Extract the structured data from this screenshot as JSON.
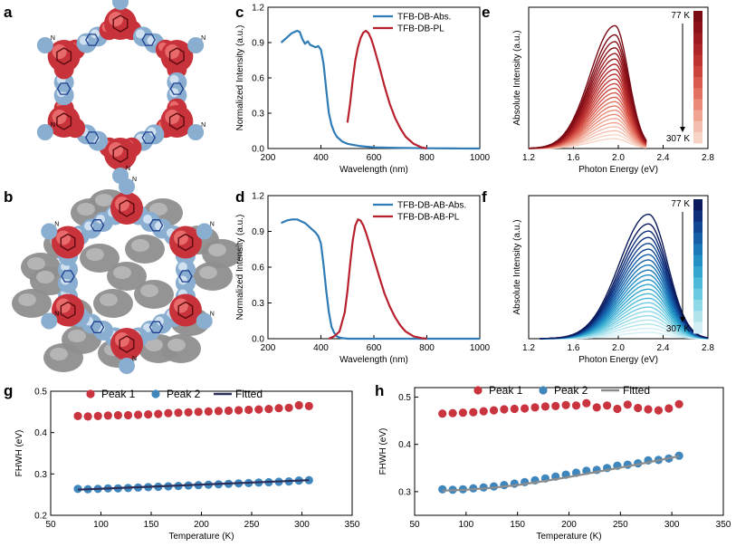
{
  "figure": {
    "panel_labels": [
      "a",
      "b",
      "c",
      "d",
      "e",
      "f",
      "g",
      "h"
    ],
    "colors": {
      "abs_blue": "#2f7bb6",
      "pl_red": "#b8202e",
      "peak1": "#c9343f",
      "peak2": "#3f86bd",
      "fit_dark": "#2b2f5a",
      "fit_gray": "#8c8c8c"
    },
    "structure_a": {
      "description_icon": "cof-hexagonal-pore-red-blue",
      "atom_label": "N"
    },
    "structure_b": {
      "description_icon": "cof-hexagonal-pore-with-gray-guest",
      "atom_label": "N"
    }
  },
  "chart_data": [
    {
      "id": "c",
      "type": "line",
      "xlabel": "Wavelength (nm)",
      "ylabel": "Normalized Intensity (a.u.)",
      "xlim": [
        200,
        1000
      ],
      "ylim": [
        0,
        1.2
      ],
      "xticks": [
        "200",
        "400",
        "600",
        "800",
        "1000"
      ],
      "yticks": [
        "0.0",
        "0.3",
        "0.6",
        "0.9",
        "1.2"
      ],
      "legend": [
        "TFB-DB-Abs.",
        "TFB-DB-PL"
      ],
      "series": [
        {
          "name": "TFB-DB-Abs.",
          "color": "#2f7bb6",
          "x": [
            250,
            270,
            290,
            310,
            320,
            330,
            340,
            350,
            360,
            370,
            380,
            390,
            400,
            410,
            420,
            425,
            430,
            440,
            450,
            460,
            480,
            500,
            550,
            600,
            700,
            800,
            900,
            1000
          ],
          "y": [
            0.9,
            0.94,
            0.98,
            1.0,
            0.99,
            0.93,
            0.89,
            0.91,
            0.88,
            0.87,
            0.86,
            0.87,
            0.84,
            0.72,
            0.5,
            0.4,
            0.3,
            0.2,
            0.14,
            0.1,
            0.06,
            0.04,
            0.02,
            0.01,
            0.005,
            0.002,
            0.001,
            0.0
          ]
        },
        {
          "name": "TFB-DB-PL",
          "color": "#b8202e",
          "x": [
            500,
            510,
            520,
            530,
            540,
            550,
            560,
            570,
            580,
            590,
            600,
            620,
            640,
            660,
            680,
            700,
            720,
            750,
            780,
            800
          ],
          "y": [
            0.22,
            0.38,
            0.58,
            0.75,
            0.86,
            0.94,
            0.985,
            1.0,
            0.98,
            0.93,
            0.86,
            0.7,
            0.53,
            0.38,
            0.26,
            0.17,
            0.1,
            0.04,
            0.01,
            0.0
          ]
        }
      ]
    },
    {
      "id": "d",
      "type": "line",
      "xlabel": "Wavelength (nm)",
      "ylabel": "Normalized Intensity (a.u.)",
      "xlim": [
        200,
        1000
      ],
      "ylim": [
        0,
        1.2
      ],
      "xticks": [
        "200",
        "400",
        "600",
        "800",
        "1000"
      ],
      "yticks": [
        "0.0",
        "0.3",
        "0.6",
        "0.9",
        "1.2"
      ],
      "legend": [
        "TFB-DB-AB-Abs.",
        "TFB-DB-AB-PL"
      ],
      "series": [
        {
          "name": "TFB-DB-AB-Abs.",
          "color": "#2f7bb6",
          "x": [
            250,
            270,
            290,
            310,
            320,
            330,
            340,
            350,
            360,
            370,
            380,
            390,
            400,
            410,
            420,
            430,
            440,
            450,
            460,
            470,
            480,
            500,
            550,
            600,
            800,
            1000
          ],
          "y": [
            0.97,
            0.99,
            1.0,
            1.0,
            0.99,
            0.98,
            0.97,
            0.95,
            0.93,
            0.91,
            0.89,
            0.86,
            0.8,
            0.62,
            0.4,
            0.22,
            0.1,
            0.05,
            0.02,
            0.01,
            0.005,
            0.0,
            0.0,
            0.0,
            0.0,
            0.0
          ]
        },
        {
          "name": "TFB-DB-AB-PL",
          "color": "#b8202e",
          "x": [
            430,
            450,
            470,
            490,
            500,
            510,
            520,
            530,
            540,
            550,
            560,
            570,
            580,
            600,
            620,
            640,
            660,
            680,
            700,
            720,
            750,
            780,
            800
          ],
          "y": [
            0.0,
            0.02,
            0.06,
            0.22,
            0.4,
            0.62,
            0.82,
            0.95,
            1.0,
            0.99,
            0.95,
            0.89,
            0.82,
            0.67,
            0.52,
            0.38,
            0.27,
            0.18,
            0.11,
            0.06,
            0.02,
            0.005,
            0.0
          ]
        }
      ]
    },
    {
      "id": "e",
      "type": "line",
      "xlabel": "Photon Energy (eV)",
      "ylabel": "Absolute Intensity (a.u.)",
      "xlim": [
        1.2,
        2.8
      ],
      "ylim": [
        0,
        1.15
      ],
      "xticks": [
        "1.2",
        "1.6",
        "2.0",
        "2.4",
        "2.8"
      ],
      "colorbar": {
        "top_label": "77 K",
        "bottom_label": "307 K",
        "colors": [
          "#7a0a14",
          "#8b1119",
          "#9c1a20",
          "#ad2528",
          "#bd3330",
          "#cc453d",
          "#d8594e",
          "#e27161",
          "#ea8a78",
          "#f0a593",
          "#f4beae",
          "#f7d4c6"
        ]
      },
      "peak_center_eV": 1.97,
      "energy_range_eV": [
        1.2,
        2.25
      ],
      "curve_count": 24,
      "max_amplitude": 1.0,
      "min_amplitude": 0.08
    },
    {
      "id": "f",
      "type": "line",
      "xlabel": "Photon Energy (eV)",
      "ylabel": "Absolute Intensity (a.u.)",
      "xlim": [
        1.2,
        2.8
      ],
      "ylim": [
        0,
        1.15
      ],
      "xticks": [
        "1.2",
        "1.6",
        "2.0",
        "2.4",
        "2.8"
      ],
      "colorbar": {
        "top_label": "77 K",
        "bottom_label": "307 K",
        "colors": [
          "#0a1a5c",
          "#0e2f7a",
          "#124794",
          "#155fa8",
          "#1a78b8",
          "#2290c4",
          "#33a6cf",
          "#4db9d8",
          "#6ccae0",
          "#8fd8e7",
          "#b3e4ee",
          "#d3eff5"
        ]
      },
      "peak_center_eV": 2.27,
      "energy_range_eV": [
        1.3,
        2.8
      ],
      "curve_count": 24,
      "max_amplitude": 1.0,
      "min_amplitude": 0.05
    },
    {
      "id": "g",
      "type": "scatter",
      "xlabel": "Temperature (K)",
      "ylabel": "FHWH (eV)",
      "xlim": [
        50,
        350
      ],
      "ylim": [
        0.2,
        0.5
      ],
      "xticks": [
        "50",
        "100",
        "150",
        "200",
        "250",
        "300",
        "350"
      ],
      "yticks": [
        "0.2",
        "0.3",
        "0.4",
        "0.5"
      ],
      "legend": [
        "Peak 1",
        "Peak 2",
        "Fitted"
      ],
      "x": [
        77,
        87,
        97,
        107,
        117,
        127,
        137,
        147,
        157,
        167,
        177,
        187,
        197,
        207,
        217,
        227,
        237,
        247,
        257,
        267,
        277,
        287,
        297,
        307
      ],
      "series": [
        {
          "name": "Peak 1",
          "color": "#c9343f",
          "values": [
            0.44,
            0.439,
            0.44,
            0.441,
            0.442,
            0.442,
            0.443,
            0.444,
            0.445,
            0.447,
            0.448,
            0.449,
            0.45,
            0.451,
            0.452,
            0.453,
            0.454,
            0.455,
            0.456,
            0.457,
            0.459,
            0.46,
            0.466,
            0.464
          ]
        },
        {
          "name": "Peak 2",
          "color": "#3f86bd",
          "values": [
            0.264,
            0.263,
            0.264,
            0.265,
            0.265,
            0.266,
            0.267,
            0.268,
            0.269,
            0.27,
            0.271,
            0.272,
            0.273,
            0.274,
            0.275,
            0.276,
            0.277,
            0.278,
            0.279,
            0.28,
            0.281,
            0.282,
            0.284,
            0.285
          ]
        },
        {
          "name": "Fitted",
          "color": "#2b2f5a",
          "x": [
            77,
            307
          ],
          "values": [
            0.262,
            0.285
          ]
        }
      ]
    },
    {
      "id": "h",
      "type": "scatter",
      "xlabel": "Temperature (K)",
      "ylabel": "FHWH (eV)",
      "xlim": [
        50,
        350
      ],
      "ylim": [
        0.25,
        0.52
      ],
      "xticks": [
        "50",
        "100",
        "150",
        "200",
        "250",
        "300",
        "350"
      ],
      "yticks": [
        "0.3",
        "0.4",
        "0.5"
      ],
      "legend": [
        "Peak 1",
        "Peak 2",
        "Fitted"
      ],
      "x": [
        77,
        87,
        97,
        107,
        117,
        127,
        137,
        147,
        157,
        167,
        177,
        187,
        197,
        207,
        217,
        227,
        237,
        247,
        257,
        267,
        277,
        287,
        297,
        307
      ],
      "series": [
        {
          "name": "Peak 1",
          "color": "#c9343f",
          "values": [
            0.465,
            0.466,
            0.467,
            0.468,
            0.47,
            0.472,
            0.474,
            0.475,
            0.476,
            0.478,
            0.48,
            0.481,
            0.483,
            0.482,
            0.487,
            0.478,
            0.482,
            0.475,
            0.484,
            0.477,
            0.474,
            0.472,
            0.476,
            0.485
          ]
        },
        {
          "name": "Peak 2",
          "color": "#3f86bd",
          "values": [
            0.305,
            0.304,
            0.305,
            0.307,
            0.309,
            0.311,
            0.314,
            0.317,
            0.32,
            0.324,
            0.328,
            0.332,
            0.336,
            0.34,
            0.344,
            0.346,
            0.35,
            0.355,
            0.357,
            0.36,
            0.366,
            0.367,
            0.37,
            0.376
          ]
        },
        {
          "name": "Fitted",
          "color": "#8c8c8c",
          "x": [
            77,
            100,
            125,
            150,
            175,
            200,
            225,
            250,
            275,
            307
          ],
          "values": [
            0.302,
            0.304,
            0.308,
            0.314,
            0.322,
            0.331,
            0.341,
            0.351,
            0.361,
            0.375
          ]
        }
      ]
    }
  ]
}
